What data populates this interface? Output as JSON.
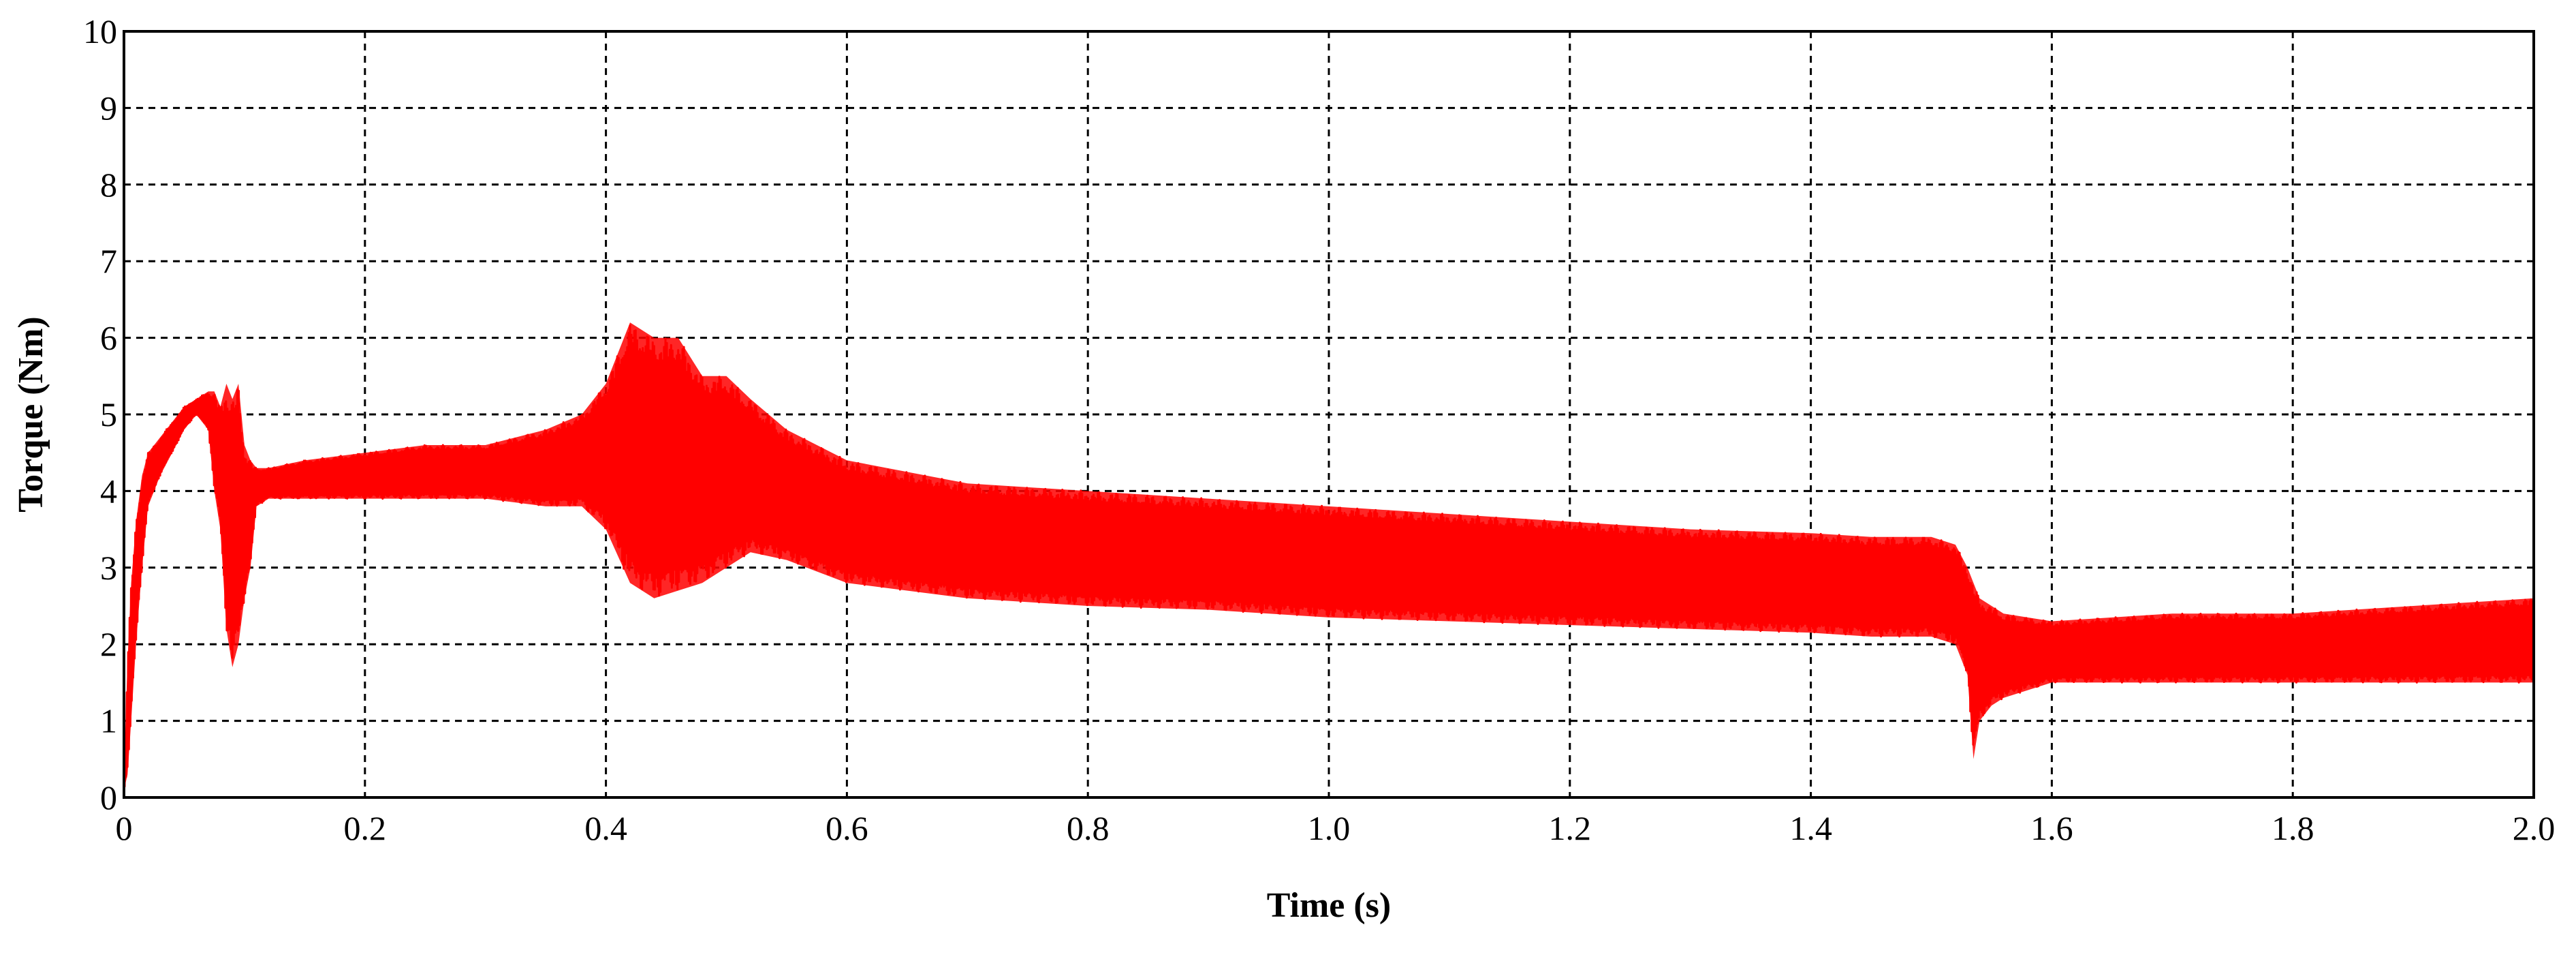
{
  "chart_data": {
    "type": "line",
    "title": "",
    "xlabel": "Time (s)",
    "ylabel": "Torque (Nm)",
    "xlim": [
      0,
      2.0
    ],
    "ylim": [
      0,
      10
    ],
    "x_tick_labels": [
      "0",
      "0.2",
      "0.4",
      "0.6",
      "0.8",
      "1.0",
      "1.2",
      "1.4",
      "1.6",
      "1.8",
      "2.0"
    ],
    "x_tick_values": [
      0,
      0.2,
      0.4,
      0.6,
      0.8,
      1.0,
      1.2,
      1.4,
      1.6,
      1.8,
      2.0
    ],
    "y_tick_labels": [
      "0",
      "1",
      "2",
      "3",
      "4",
      "5",
      "6",
      "7",
      "8",
      "9",
      "10"
    ],
    "y_tick_values": [
      0,
      1,
      2,
      3,
      4,
      5,
      6,
      7,
      8,
      9,
      10
    ],
    "grid": true,
    "grid_style": "dashed",
    "legend": "none",
    "series": [
      {
        "color": "#ff0000",
        "x": [
          0,
          0.003,
          0.006,
          0.01,
          0.015,
          0.02,
          0.03,
          0.04,
          0.05,
          0.06,
          0.07,
          0.075,
          0.08,
          0.085,
          0.09,
          0.095,
          0.1,
          0.105,
          0.11,
          0.12,
          0.15,
          0.2,
          0.25,
          0.3,
          0.35,
          0.38,
          0.4,
          0.42,
          0.44,
          0.46,
          0.48,
          0.5,
          0.52,
          0.55,
          0.6,
          0.7,
          0.8,
          0.9,
          1.0,
          1.1,
          1.2,
          1.3,
          1.4,
          1.45,
          1.5,
          1.52,
          1.53,
          1.535,
          1.54,
          1.55,
          1.56,
          1.6,
          1.7,
          1.8,
          1.9,
          2.0
        ],
        "upper": [
          0.3,
          1.8,
          2.8,
          3.6,
          4.2,
          4.5,
          4.7,
          4.9,
          5.1,
          5.2,
          5.3,
          5.3,
          5.1,
          5.4,
          5.2,
          5.4,
          4.6,
          4.4,
          4.3,
          4.3,
          4.4,
          4.5,
          4.6,
          4.6,
          4.8,
          5.0,
          5.4,
          6.2,
          6.0,
          6.0,
          5.5,
          5.5,
          5.2,
          4.8,
          4.4,
          4.1,
          4.0,
          3.9,
          3.8,
          3.7,
          3.6,
          3.5,
          3.45,
          3.4,
          3.4,
          3.3,
          3.0,
          2.8,
          2.6,
          2.5,
          2.4,
          2.3,
          2.4,
          2.4,
          2.5,
          2.6
        ],
        "lower": [
          0.1,
          0.3,
          1.0,
          2.0,
          3.0,
          3.8,
          4.2,
          4.5,
          4.8,
          5.0,
          4.8,
          4.0,
          3.5,
          2.2,
          1.7,
          2.0,
          2.6,
          3.0,
          3.8,
          3.9,
          3.9,
          3.9,
          3.9,
          3.9,
          3.8,
          3.8,
          3.5,
          2.8,
          2.6,
          2.7,
          2.8,
          3.0,
          3.2,
          3.1,
          2.8,
          2.6,
          2.5,
          2.45,
          2.35,
          2.3,
          2.25,
          2.2,
          2.15,
          2.1,
          2.1,
          2.0,
          1.6,
          0.5,
          1.0,
          1.2,
          1.3,
          1.5,
          1.5,
          1.5,
          1.5,
          1.5
        ]
      }
    ]
  }
}
